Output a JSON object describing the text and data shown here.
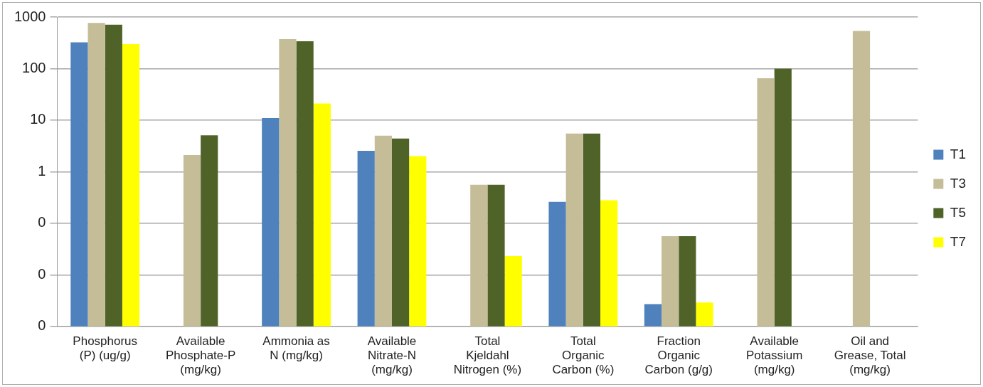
{
  "chart_data": {
    "type": "bar",
    "categories": [
      "Phosphorus\n(P) (ug/g)",
      "Available\nPhosphate-P\n(mg/kg)",
      "Ammonia as\nN (mg/kg)",
      "Available\nNitrate-N\n(mg/kg)",
      "Total\nKjeldahl\nNitrogen (%)",
      "Total\nOrganic\nCarbon (%)",
      "Fraction\nOrganic\nCarbon (g/g)",
      "Available\nPotassium\n(mg/kg)",
      "Oil and\nGrease, Total\n(mg/kg)"
    ],
    "series": [
      {
        "name": "T1",
        "color": "#4f81bd",
        "values": [
          324,
          null,
          11,
          2.55,
          null,
          0.26,
          0.0027,
          null,
          null
        ]
      },
      {
        "name": "T3",
        "color": "#c4bd97",
        "values": [
          770,
          2.1,
          373,
          5.0,
          0.56,
          5.5,
          0.056,
          65,
          540
        ]
      },
      {
        "name": "T5",
        "color": "#4f6228",
        "values": [
          710,
          5.1,
          340,
          4.4,
          0.56,
          5.5,
          0.056,
          100,
          null
        ]
      },
      {
        "name": "T7",
        "color": "#ffff00",
        "values": [
          298,
          null,
          21,
          2.0,
          0.023,
          0.28,
          0.0029,
          null,
          null
        ]
      }
    ],
    "log": true,
    "ylim": [
      0.001,
      1000
    ],
    "yticks": [
      {
        "value": 0.001,
        "label": "0"
      },
      {
        "value": 0.01,
        "label": "0"
      },
      {
        "value": 0.1,
        "label": "0"
      },
      1,
      10,
      100,
      1000
    ],
    "grid": "y",
    "legend": "right"
  }
}
